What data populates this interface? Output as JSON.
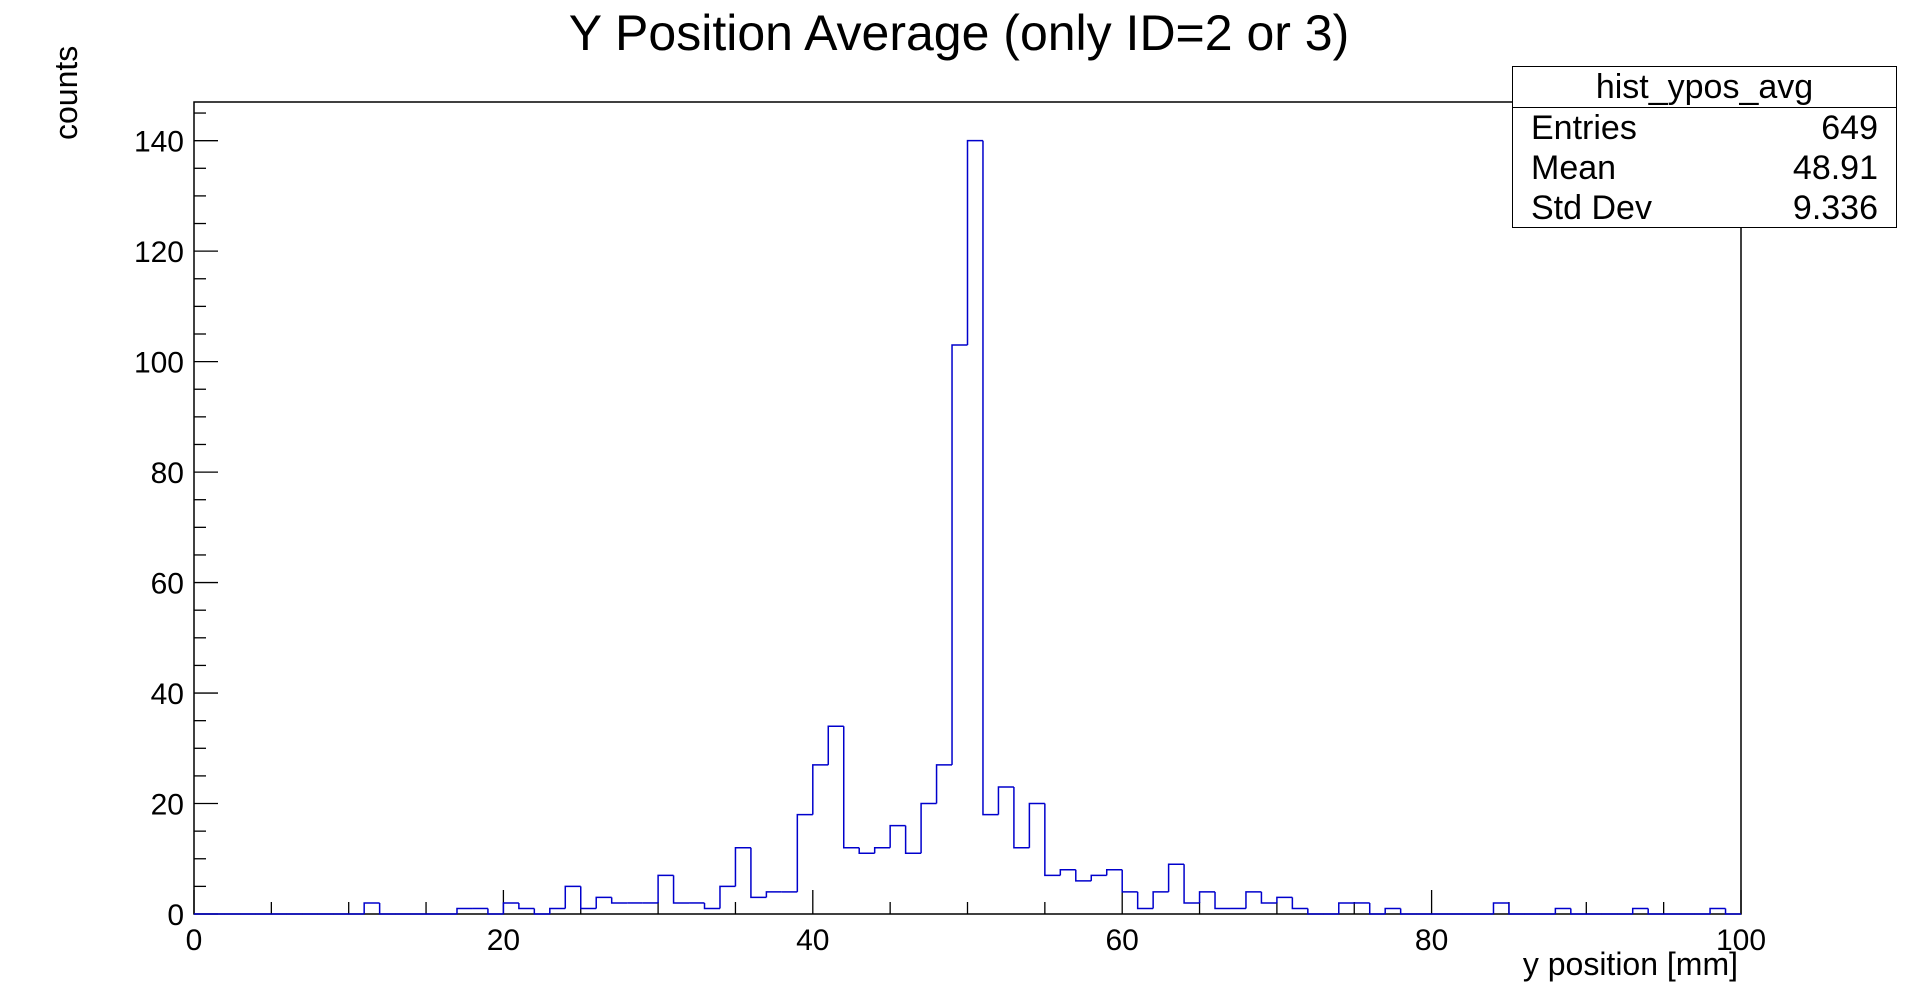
{
  "chart_data": {
    "type": "bar",
    "histogram": true,
    "title": "Y Position Average (only ID=2 or 3)",
    "xlabel": "y position [mm]",
    "ylabel": "counts",
    "xlim": [
      0,
      100
    ],
    "ylim": [
      0,
      147
    ],
    "x_ticks": [
      0,
      20,
      40,
      60,
      80,
      100
    ],
    "y_ticks": [
      0,
      20,
      40,
      60,
      80,
      100,
      120,
      140
    ],
    "grid": false,
    "line_color": "#0000cc",
    "bin_width": 1,
    "counts": [
      0,
      0,
      0,
      0,
      0,
      0,
      0,
      0,
      0,
      0,
      0,
      2,
      0,
      0,
      0,
      0,
      0,
      1,
      1,
      0,
      2,
      1,
      0,
      1,
      5,
      1,
      3,
      2,
      2,
      2,
      7,
      2,
      2,
      1,
      5,
      12,
      3,
      4,
      4,
      18,
      27,
      34,
      12,
      11,
      12,
      16,
      11,
      20,
      27,
      103,
      140,
      18,
      23,
      12,
      20,
      7,
      8,
      6,
      7,
      8,
      4,
      1,
      4,
      9,
      2,
      4,
      1,
      1,
      4,
      2,
      3,
      1,
      0,
      0,
      2,
      2,
      0,
      1,
      0,
      0,
      0,
      0,
      0,
      0,
      2,
      0,
      0,
      0,
      1,
      0,
      0,
      0,
      0,
      1,
      0,
      0,
      0,
      0,
      1,
      0
    ],
    "stats": {
      "name": "hist_ypos_avg",
      "rows": [
        {
          "label": "Entries",
          "value": "649"
        },
        {
          "label": "Mean",
          "value": "48.91"
        },
        {
          "label": "Std Dev",
          "value": "9.336"
        }
      ]
    }
  }
}
